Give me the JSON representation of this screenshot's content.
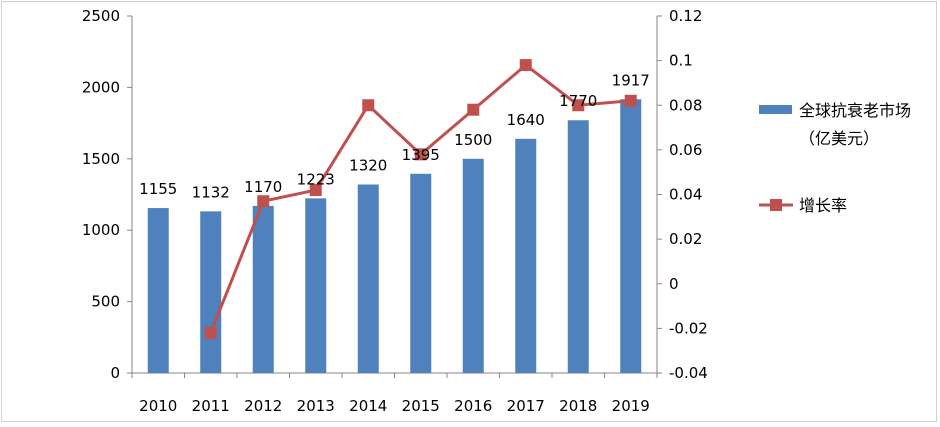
{
  "chart_data": {
    "type": "bar",
    "categories": [
      "2010",
      "2011",
      "2012",
      "2013",
      "2014",
      "2015",
      "2016",
      "2017",
      "2018",
      "2019"
    ],
    "series": [
      {
        "name": "全球抗衰老市场（亿美元）",
        "name_line1": "全球抗衰老市场",
        "name_line2": "（亿美元）",
        "type": "bar",
        "axis": "left",
        "color": "#4f81bd",
        "values": [
          1155,
          1132,
          1170,
          1223,
          1320,
          1395,
          1500,
          1640,
          1770,
          1917
        ]
      },
      {
        "name": "增长率",
        "type": "line",
        "axis": "right",
        "color": "#c0504d",
        "values": [
          null,
          -0.022,
          0.037,
          0.042,
          0.08,
          0.058,
          0.078,
          0.098,
          0.08,
          0.082
        ]
      }
    ],
    "left_axis": {
      "ylim": [
        0,
        2500
      ],
      "ticks": [
        "0",
        "500",
        "1000",
        "1500",
        "2000",
        "2500"
      ]
    },
    "right_axis": {
      "ylim": [
        -0.04,
        0.12
      ],
      "ticks": [
        "-0.04",
        "-0.02",
        "0",
        "0.02",
        "0.04",
        "0.06",
        "0.08",
        "0.1",
        "0.12"
      ]
    },
    "data_labels": [
      "1155",
      "1132",
      "1170",
      "1223",
      "1320",
      "1395",
      "1500",
      "1640",
      "1770",
      "1917"
    ],
    "grid": false,
    "legend_position": "right"
  }
}
